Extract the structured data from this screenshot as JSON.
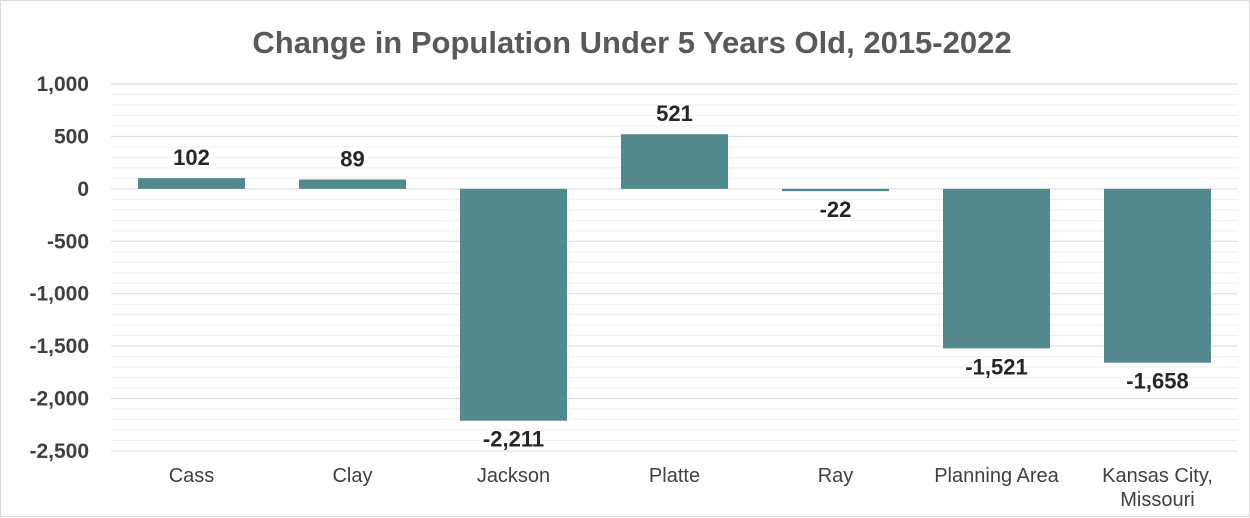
{
  "colors": {
    "bar": "#52898c",
    "major_grid": "#d9d9d9",
    "minor_grid": "#efefef"
  },
  "chart_data": {
    "type": "bar",
    "title": "Change in Population Under 5 Years Old, 2015-2022",
    "categories": [
      "Cass",
      "Clay",
      "Jackson",
      "Platte",
      "Ray",
      "Planning Area",
      "Kansas City, Missouri"
    ],
    "category_lines": [
      [
        "Cass"
      ],
      [
        "Clay"
      ],
      [
        "Jackson"
      ],
      [
        "Platte"
      ],
      [
        "Ray"
      ],
      [
        "Planning Area"
      ],
      [
        "Kansas City,",
        "Missouri"
      ]
    ],
    "values": [
      102,
      89,
      -2211,
      521,
      -22,
      -1521,
      -1658
    ],
    "data_labels": [
      "102",
      "89",
      "-2,211",
      "521",
      "-22",
      "-1,521",
      "-1,658"
    ],
    "ylim": [
      -2500,
      1000
    ],
    "yticks": [
      1000,
      500,
      0,
      -500,
      -1000,
      -1500,
      -2000,
      -2500
    ],
    "ytick_labels": [
      "1,000",
      "500",
      "0",
      "-500",
      "-1,000",
      "-1,500",
      "-2,000",
      "-2,500"
    ],
    "minor_step": 100,
    "grid": true,
    "legend": false
  }
}
